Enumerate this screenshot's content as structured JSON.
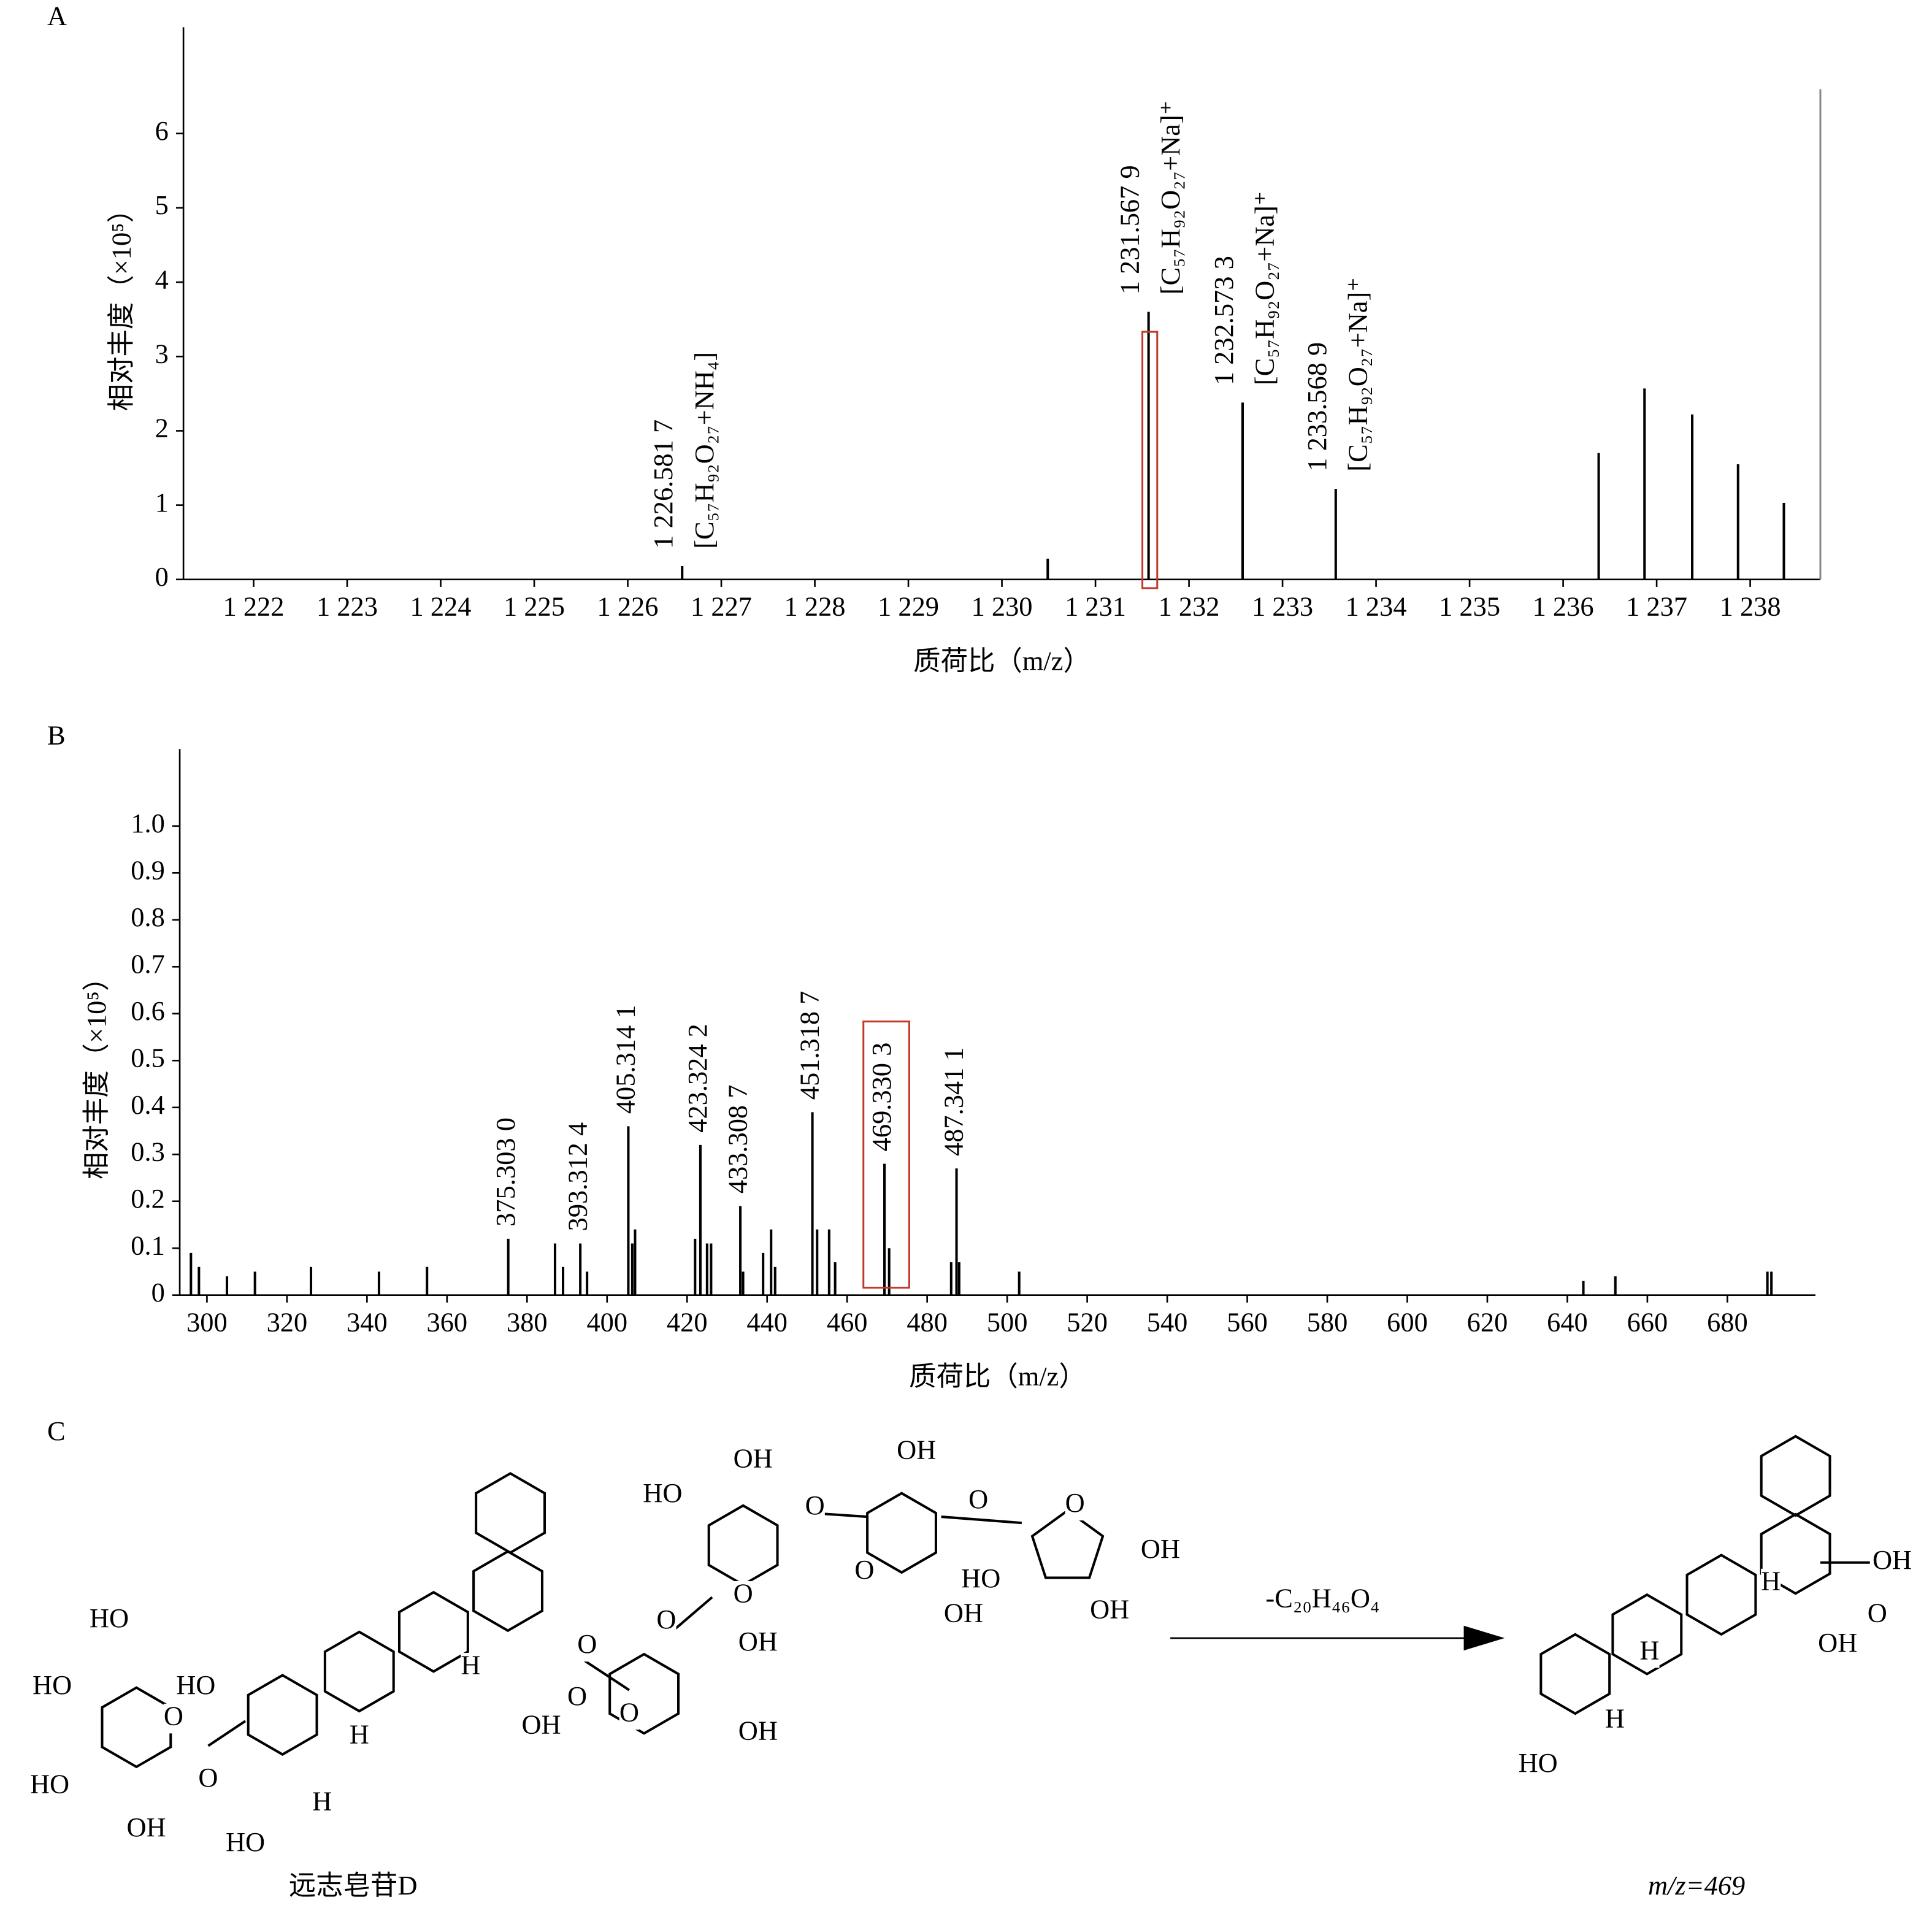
{
  "chart_data": [
    {
      "type": "bar",
      "panel_label": "A",
      "ylabel": "相对丰度（×10⁵）",
      "xlabel": "质荷比（m/z）",
      "color": "#000000",
      "highlight_color": "#c0392b",
      "highlight_index": 1,
      "xlim": [
        1221.25,
        1238.75
      ],
      "ylim": [
        0,
        7.43
      ],
      "xticks": [
        {
          "value": 1222,
          "label": "1 222"
        },
        {
          "value": 1223,
          "label": "1 223"
        },
        {
          "value": 1224,
          "label": "1 224"
        },
        {
          "value": 1225,
          "label": "1 225"
        },
        {
          "value": 1226,
          "label": "1 226"
        },
        {
          "value": 1227,
          "label": "1 227"
        },
        {
          "value": 1228,
          "label": "1 228"
        },
        {
          "value": 1229,
          "label": "1 229"
        },
        {
          "value": 1230,
          "label": "1 230"
        },
        {
          "value": 1231,
          "label": "1 231"
        },
        {
          "value": 1232,
          "label": "1 232"
        },
        {
          "value": 1233,
          "label": "1 233"
        },
        {
          "value": 1234,
          "label": "1 234"
        },
        {
          "value": 1235,
          "label": "1 235"
        },
        {
          "value": 1236,
          "label": "1 236"
        },
        {
          "value": 1237,
          "label": "1 237"
        },
        {
          "value": 1238,
          "label": "1 238"
        }
      ],
      "yticks": [
        0,
        1,
        2,
        3,
        4,
        5,
        6
      ],
      "x": [
        1226.5817,
        1230.49,
        1231.5679,
        1232.5733,
        1233.5689,
        1236.38,
        1236.87,
        1237.38,
        1237.87,
        1238.36
      ],
      "values": [
        0.18,
        0.28,
        3.6,
        2.38,
        1.22,
        1.7,
        2.57,
        2.22,
        1.55,
        1.03
      ],
      "annotations": [
        {
          "x": 1226.5817,
          "label": "1 226.581 7",
          "formula": "[C₅₇H₉₂O₂₇+NH₄]"
        },
        {
          "x": 1231.5679,
          "label": "1 231.567 9",
          "formula": "[C₅₇H₉₂O₂₇+Na]⁺"
        },
        {
          "x": 1232.5733,
          "label": "1 232.573 3",
          "formula": "[C₅₇H₉₂O₂₇+Na]⁺"
        },
        {
          "x": 1233.5689,
          "label": "1 233.568 9",
          "formula": "[C₅₇H₉₂O₂₇+Na]⁺"
        }
      ]
    },
    {
      "type": "bar",
      "panel_label": "B",
      "ylabel": "相对丰度（×10⁵）",
      "xlabel": "质荷比（m/z）",
      "color": "#000000",
      "highlight_color": "#c0392b",
      "highlight_index": 6,
      "xlim": [
        293.2,
        702
      ],
      "ylim": [
        0,
        1.164
      ],
      "xticks": [
        300,
        320,
        340,
        360,
        380,
        400,
        420,
        440,
        460,
        480,
        500,
        520,
        540,
        560,
        580,
        600,
        620,
        640,
        660,
        680
      ],
      "yticks": [
        0,
        0.1,
        0.2,
        0.3,
        0.4,
        0.5,
        0.6,
        0.7,
        0.8,
        0.9,
        {
          "value": 1,
          "label": "1.0"
        }
      ],
      "x": [
        296,
        298,
        305,
        312,
        326,
        343,
        355,
        375.303,
        387,
        389,
        393.3124,
        395,
        405.3141,
        406.3,
        407,
        422,
        423.3242,
        425,
        426,
        433.3087,
        434,
        439,
        441,
        442,
        451.3187,
        452.5,
        455.5,
        457,
        469.3303,
        470.5,
        486,
        487.3411,
        488,
        503,
        644,
        652,
        690,
        691
      ],
      "values": [
        0.09,
        0.06,
        0.04,
        0.05,
        0.06,
        0.05,
        0.06,
        0.12,
        0.11,
        0.06,
        0.11,
        0.05,
        0.36,
        0.11,
        0.14,
        0.12,
        0.32,
        0.11,
        0.11,
        0.19,
        0.05,
        0.09,
        0.14,
        0.06,
        0.39,
        0.14,
        0.14,
        0.07,
        0.28,
        0.1,
        0.07,
        0.27,
        0.07,
        0.05,
        0.03,
        0.04,
        0.05,
        0.05
      ],
      "annotations": [
        {
          "x": 375.303,
          "label": "375.303 0"
        },
        {
          "x": 393.3124,
          "label": "393.312 4"
        },
        {
          "x": 405.3141,
          "label": "405.314 1"
        },
        {
          "x": 423.3242,
          "label": "423.324 2"
        },
        {
          "x": 433.3087,
          "label": "433.308 7"
        },
        {
          "x": 451.3187,
          "label": "451.318 7"
        },
        {
          "x": 469.3303,
          "label": "469.330 3"
        },
        {
          "x": 487.3411,
          "label": "487.341 1"
        }
      ]
    }
  ],
  "diagram": {
    "panel_label": "C",
    "reaction": "-C₂₀H₄₆O₄",
    "compound": "远志皂苷D",
    "product": "m/z=469",
    "atom_labels": [
      "HO",
      "HO",
      "O",
      "HO",
      "OH",
      "HO",
      "O",
      "HO",
      "H",
      "H",
      "H",
      "O",
      "OH",
      "O",
      "O",
      "OH",
      "OH",
      "O",
      "HO",
      "OH",
      "O",
      "O",
      "OH",
      "O",
      "O",
      "HO",
      "OH",
      "O",
      "OH",
      "OH",
      "H",
      "OH",
      "O",
      "OH",
      "H",
      "H",
      "HO"
    ]
  }
}
